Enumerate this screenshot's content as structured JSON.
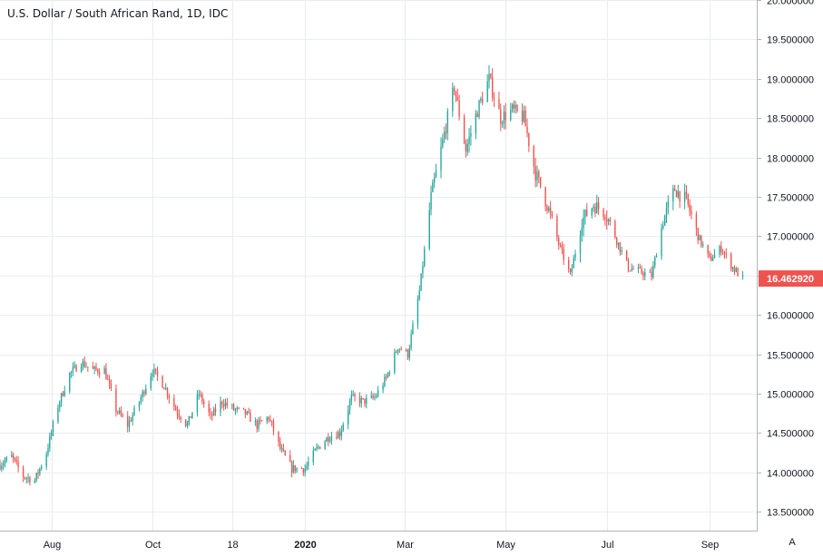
{
  "chart_data": {
    "type": "candlestick",
    "title": "U.S. Dollar / South African Rand, 1D, IDC",
    "ylim": [
      13.25,
      20.0
    ],
    "y_ticks": [
      13.5,
      14.0,
      14.5,
      15.0,
      15.5,
      16.0,
      16.5,
      17.0,
      17.5,
      18.0,
      18.5,
      19.0,
      19.5,
      20.0
    ],
    "y_tick_labels": [
      "13.500000",
      "14.000000",
      "14.500000",
      "15.000000",
      "15.500000",
      "16.000000",
      "16.500000",
      "17.000000",
      "17.500000",
      "18.000000",
      "18.500000",
      "19.000000",
      "19.500000",
      "20.000000"
    ],
    "x_start": "2019-07-01",
    "x_end": "2020-09-30",
    "x_ticks": [
      {
        "date": "2019-08-01",
        "label": "Aug"
      },
      {
        "date": "2019-10-01",
        "label": "Oct"
      },
      {
        "date": "2019-11-18",
        "label": "18"
      },
      {
        "date": "2020-01-01",
        "label": "2020"
      },
      {
        "date": "2020-03-01",
        "label": "Mar"
      },
      {
        "date": "2020-05-01",
        "label": "May"
      },
      {
        "date": "2020-07-01",
        "label": "Jul"
      },
      {
        "date": "2020-09-01",
        "label": "Sep"
      }
    ],
    "path": [
      [
        "2019-07-01",
        14.1
      ],
      [
        "2019-07-08",
        14.2
      ],
      [
        "2019-07-15",
        13.95
      ],
      [
        "2019-07-22",
        13.9
      ],
      [
        "2019-07-29",
        14.25
      ],
      [
        "2019-08-05",
        14.85
      ],
      [
        "2019-08-12",
        15.25
      ],
      [
        "2019-08-19",
        15.4
      ],
      [
        "2019-08-26",
        15.3
      ],
      [
        "2019-09-02",
        15.3
      ],
      [
        "2019-09-09",
        14.8
      ],
      [
        "2019-09-16",
        14.6
      ],
      [
        "2019-09-23",
        14.9
      ],
      [
        "2019-10-01",
        15.3
      ],
      [
        "2019-10-08",
        15.1
      ],
      [
        "2019-10-15",
        14.8
      ],
      [
        "2019-10-22",
        14.6
      ],
      [
        "2019-10-29",
        15.0
      ],
      [
        "2019-11-05",
        14.7
      ],
      [
        "2019-11-12",
        14.9
      ],
      [
        "2019-11-19",
        14.8
      ],
      [
        "2019-11-26",
        14.75
      ],
      [
        "2019-12-03",
        14.6
      ],
      [
        "2019-12-10",
        14.7
      ],
      [
        "2019-12-17",
        14.3
      ],
      [
        "2019-12-24",
        14.05
      ],
      [
        "2020-01-01",
        14.05
      ],
      [
        "2020-01-08",
        14.3
      ],
      [
        "2020-01-15",
        14.45
      ],
      [
        "2020-01-22",
        14.5
      ],
      [
        "2020-01-29",
        14.95
      ],
      [
        "2020-02-05",
        14.9
      ],
      [
        "2020-02-12",
        14.95
      ],
      [
        "2020-02-19",
        15.2
      ],
      [
        "2020-02-26",
        15.6
      ],
      [
        "2020-03-03",
        15.5
      ],
      [
        "2020-03-10",
        16.3
      ],
      [
        "2020-03-17",
        17.5
      ],
      [
        "2020-03-24",
        18.2
      ],
      [
        "2020-03-31",
        18.9
      ],
      [
        "2020-04-07",
        18.1
      ],
      [
        "2020-04-14",
        18.6
      ],
      [
        "2020-04-21",
        19.0
      ],
      [
        "2020-04-28",
        18.5
      ],
      [
        "2020-05-05",
        18.6
      ],
      [
        "2020-05-12",
        18.5
      ],
      [
        "2020-05-19",
        17.8
      ],
      [
        "2020-05-26",
        17.4
      ],
      [
        "2020-06-02",
        16.9
      ],
      [
        "2020-06-09",
        16.5
      ],
      [
        "2020-06-16",
        17.2
      ],
      [
        "2020-06-23",
        17.4
      ],
      [
        "2020-06-30",
        17.3
      ],
      [
        "2020-07-07",
        16.95
      ],
      [
        "2020-07-14",
        16.6
      ],
      [
        "2020-07-21",
        16.55
      ],
      [
        "2020-07-28",
        16.5
      ],
      [
        "2020-08-04",
        17.2
      ],
      [
        "2020-08-11",
        17.6
      ],
      [
        "2020-08-18",
        17.45
      ],
      [
        "2020-08-25",
        17.0
      ],
      [
        "2020-09-01",
        16.7
      ],
      [
        "2020-09-08",
        16.85
      ],
      [
        "2020-09-15",
        16.6
      ],
      [
        "2020-09-21",
        16.46
      ]
    ],
    "last_price": "16.462920",
    "colors": {
      "up": "#26a69a",
      "down": "#ef5350",
      "grid": "#e9ecf1",
      "axis_text": "#131722",
      "last_price_bg": "#ef5350"
    },
    "grid": true
  },
  "auto_scale_label": "A"
}
